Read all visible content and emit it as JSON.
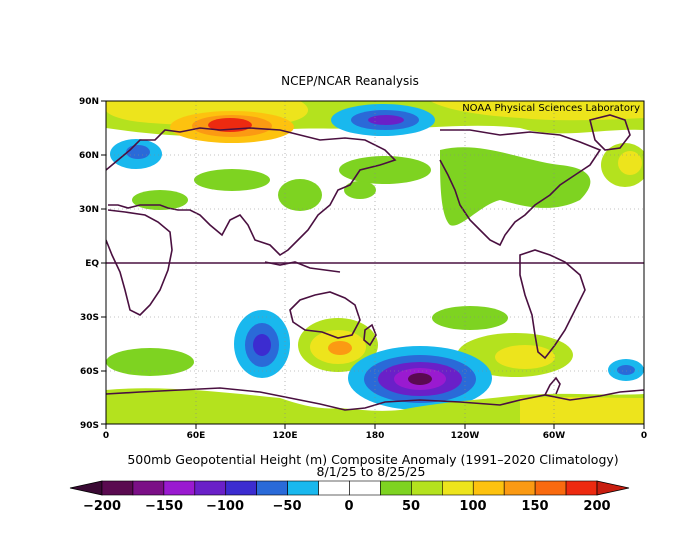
{
  "header": {
    "title": "NCEP/NCAR Reanalysis",
    "credit": "NOAA Physical Sciences Laboratory"
  },
  "map": {
    "lat_labels": [
      "90N",
      "60N",
      "30N",
      "EQ",
      "30S",
      "60S",
      "90S"
    ],
    "lon_labels": [
      "0",
      "60E",
      "120E",
      "180",
      "120W",
      "60W",
      "0"
    ]
  },
  "caption": {
    "line1": "500mb Geopotential Height (m) Composite Anomaly (1991–2020 Climatology)",
    "line2": "8/1/25  to 8/25/25"
  },
  "colorbar": {
    "labels": [
      "−200",
      "−150",
      "−100",
      "−50",
      "0",
      "50",
      "100",
      "150",
      "200"
    ],
    "colors": [
      "#5a0a50",
      "#7b0f86",
      "#9a1ad0",
      "#6a20c8",
      "#3c2cd0",
      "#2a6ad8",
      "#19b8ee",
      "#ffffff",
      "#ffffff",
      "#7ed321",
      "#b4e21e",
      "#ede41c",
      "#fdc20f",
      "#fb9a13",
      "#f96a0f",
      "#ed2a10"
    ]
  }
}
